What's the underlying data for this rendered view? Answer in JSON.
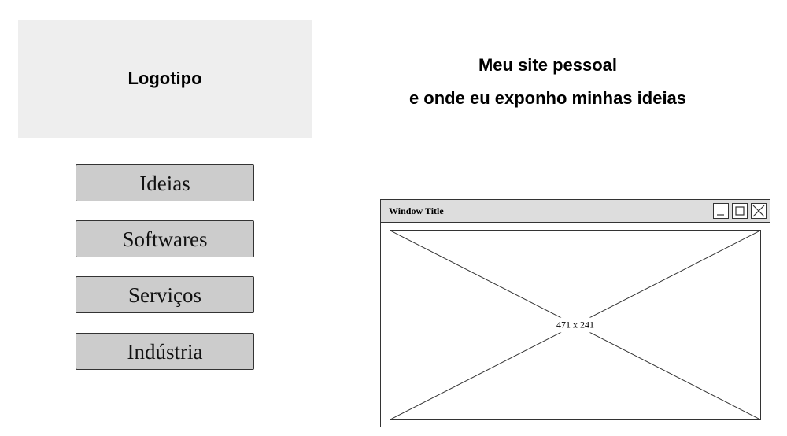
{
  "header": {
    "logo_text": "Logotipo",
    "tagline_line1": "Meu site pessoal",
    "tagline_line2": "e onde eu exponho minhas ideias"
  },
  "nav": {
    "items": [
      {
        "label": "Ideias"
      },
      {
        "label": "Softwares"
      },
      {
        "label": "Serviços"
      },
      {
        "label": "Indústria"
      }
    ]
  },
  "window": {
    "title": "Window Title",
    "controls": [
      "minimize-icon",
      "maximize-icon",
      "close-icon"
    ],
    "placeholder": {
      "label": "471 x 241"
    }
  },
  "colors": {
    "logo_bg": "#eeeeee",
    "button_bg": "#cccccc",
    "titlebar_bg": "#dddddd",
    "border": "#333333"
  }
}
